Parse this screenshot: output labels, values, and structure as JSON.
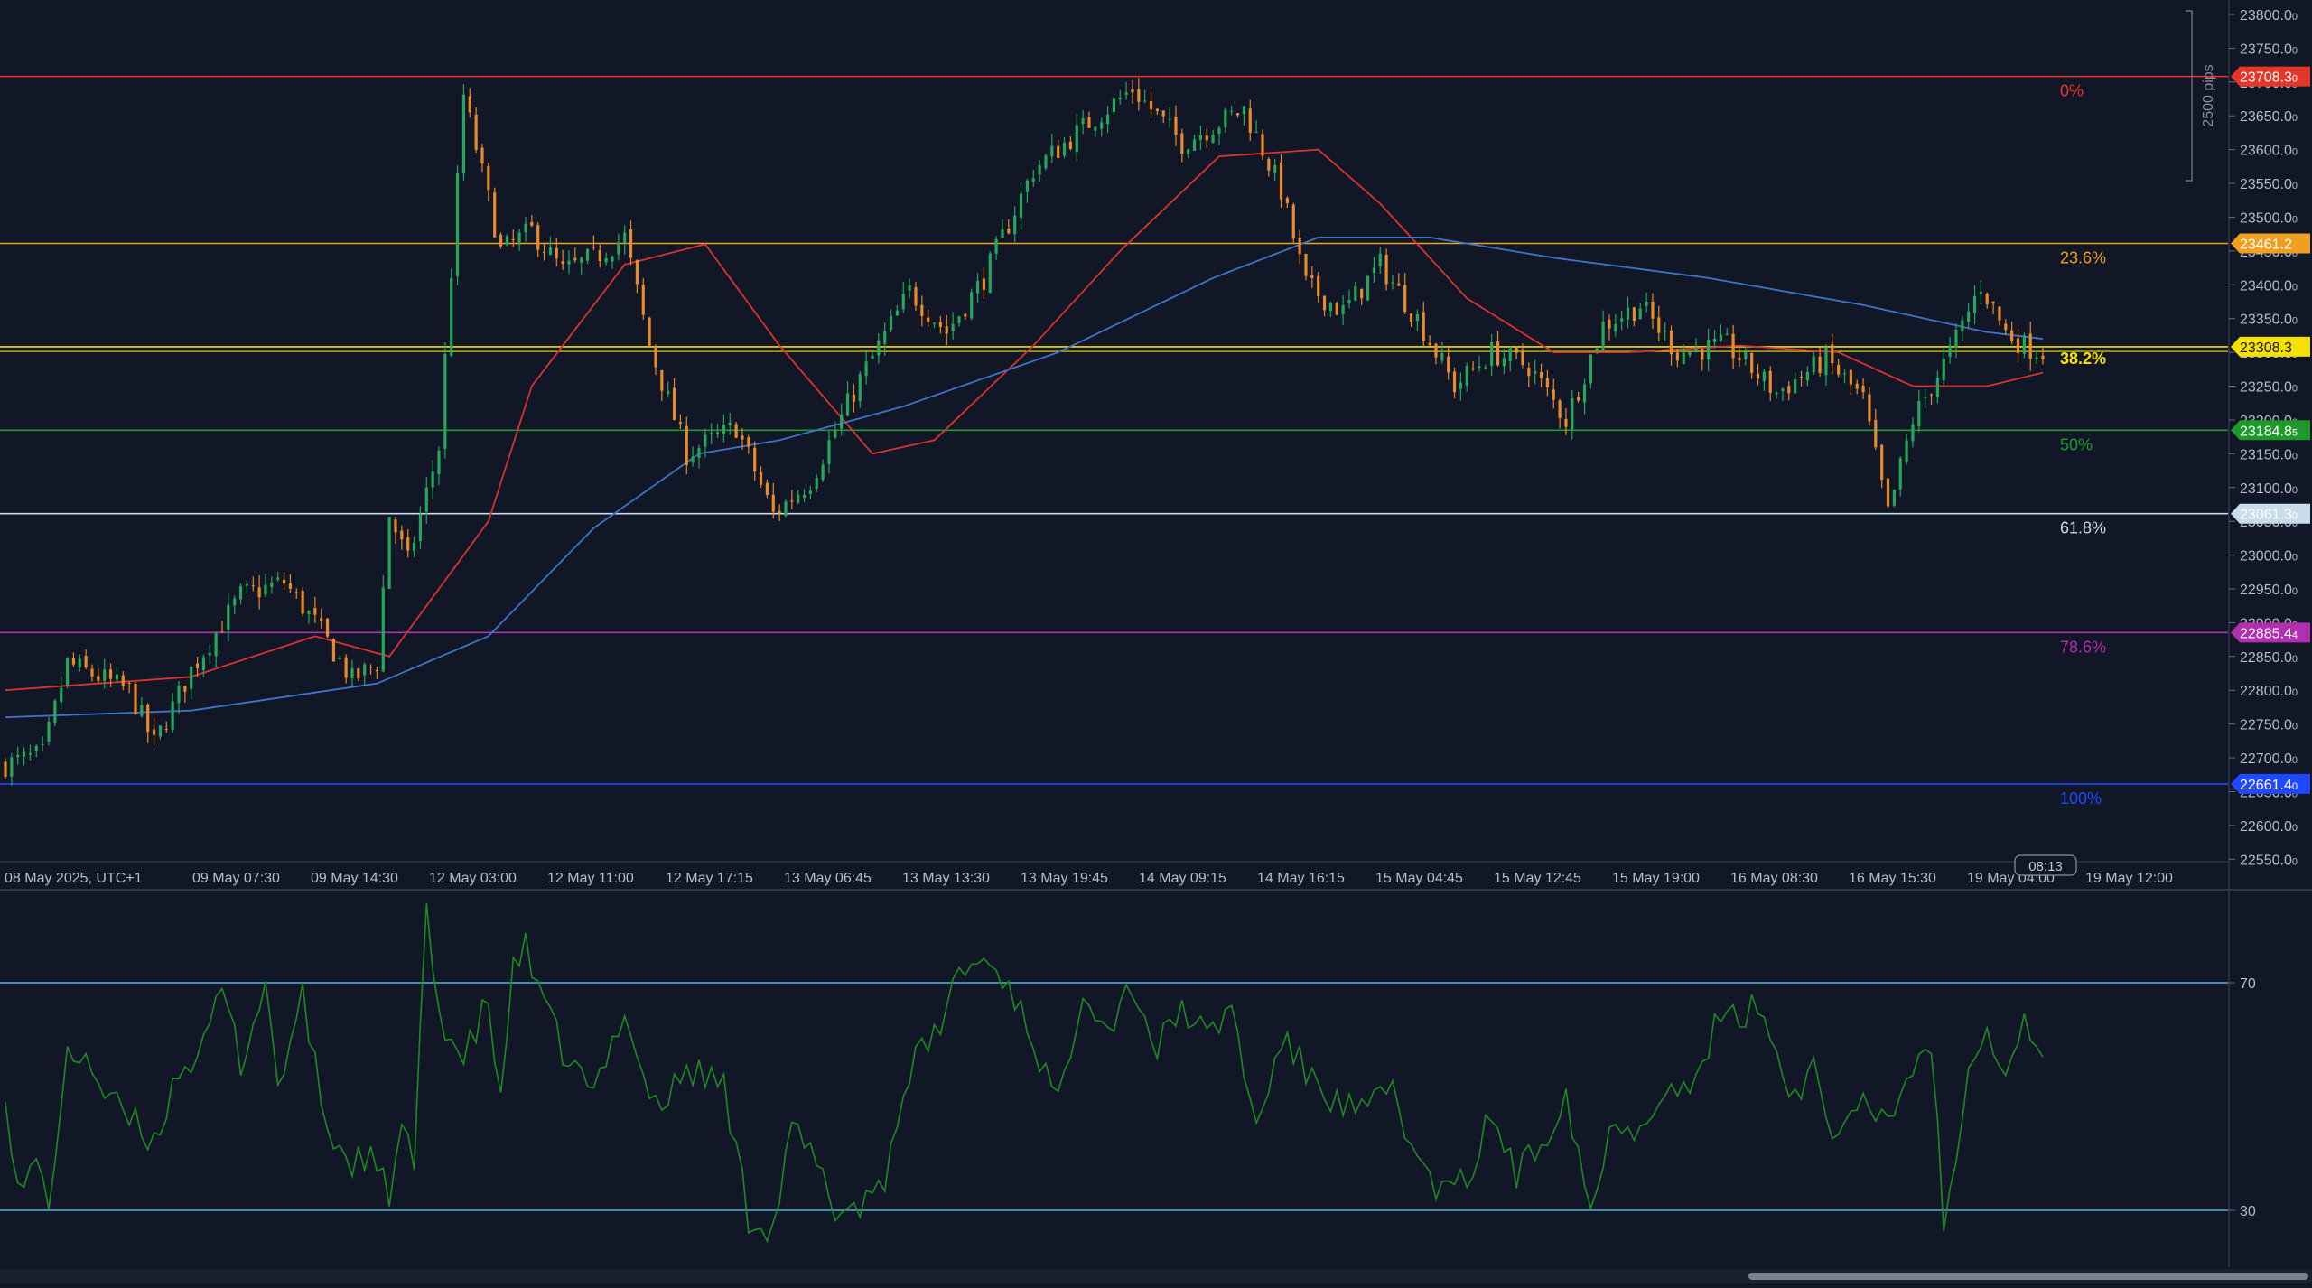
{
  "chart_data": [
    {
      "type": "candlestick",
      "title": "",
      "timezone_label": "08 May 2025, UTC+1",
      "x_tick_labels": [
        "08 May 2025, UTC+1",
        "09 May 07:30",
        "09 May 14:30",
        "12 May 03:00",
        "12 May 11:00",
        "12 May 17:15",
        "13 May 06:45",
        "13 May 13:30",
        "13 May 19:45",
        "14 May 09:15",
        "14 May 16:15",
        "15 May 04:45",
        "15 May 12:45",
        "15 May 19:00",
        "16 May 08:30",
        "16 May 15:30",
        "19 May 04:00",
        "19 May 12:00"
      ],
      "y_tick_labels": [
        "23800.0",
        "23750.0",
        "23700.0",
        "23650.0",
        "23600.0",
        "23550.0",
        "23500.0",
        "23450.0",
        "23400.0",
        "23350.0",
        "23300.0",
        "23250.0",
        "23200.0",
        "23150.0",
        "23100.0",
        "23050.0",
        "23000.0",
        "22950.0",
        "22900.0",
        "22850.0",
        "22800.0",
        "22750.0",
        "22700.0",
        "22650.0",
        "22600.0",
        "22550.0"
      ],
      "ylim": [
        22540,
        23815
      ],
      "bar_count": 330,
      "candle_colors": {
        "up": "#26a65b",
        "down": "#e8892b"
      },
      "close_path": [
        {
          "bar": 0,
          "price": 22690
        },
        {
          "bar": 6,
          "price": 22705
        },
        {
          "bar": 10,
          "price": 22840
        },
        {
          "bar": 20,
          "price": 22800
        },
        {
          "bar": 24,
          "price": 22720
        },
        {
          "bar": 30,
          "price": 22830
        },
        {
          "bar": 38,
          "price": 22940
        },
        {
          "bar": 45,
          "price": 22960
        },
        {
          "bar": 50,
          "price": 22900
        },
        {
          "bar": 56,
          "price": 22815
        },
        {
          "bar": 60,
          "price": 22840
        },
        {
          "bar": 62,
          "price": 23060
        },
        {
          "bar": 65,
          "price": 22990
        },
        {
          "bar": 70,
          "price": 23160
        },
        {
          "bar": 74,
          "price": 23680
        },
        {
          "bar": 80,
          "price": 23450
        },
        {
          "bar": 85,
          "price": 23480
        },
        {
          "bar": 90,
          "price": 23420
        },
        {
          "bar": 95,
          "price": 23440
        },
        {
          "bar": 100,
          "price": 23470
        },
        {
          "bar": 104,
          "price": 23310
        },
        {
          "bar": 110,
          "price": 23150
        },
        {
          "bar": 118,
          "price": 23190
        },
        {
          "bar": 124,
          "price": 23060
        },
        {
          "bar": 130,
          "price": 23110
        },
        {
          "bar": 138,
          "price": 23260
        },
        {
          "bar": 146,
          "price": 23390
        },
        {
          "bar": 152,
          "price": 23330
        },
        {
          "bar": 158,
          "price": 23410
        },
        {
          "bar": 166,
          "price": 23570
        },
        {
          "bar": 175,
          "price": 23640
        },
        {
          "bar": 182,
          "price": 23690
        },
        {
          "bar": 190,
          "price": 23610
        },
        {
          "bar": 196,
          "price": 23640
        },
        {
          "bar": 200,
          "price": 23660
        },
        {
          "bar": 206,
          "price": 23540
        },
        {
          "bar": 210,
          "price": 23400
        },
        {
          "bar": 216,
          "price": 23360
        },
        {
          "bar": 222,
          "price": 23430
        },
        {
          "bar": 228,
          "price": 23350
        },
        {
          "bar": 234,
          "price": 23250
        },
        {
          "bar": 240,
          "price": 23300
        },
        {
          "bar": 246,
          "price": 23280
        },
        {
          "bar": 252,
          "price": 23200
        },
        {
          "bar": 258,
          "price": 23340
        },
        {
          "bar": 264,
          "price": 23370
        },
        {
          "bar": 270,
          "price": 23300
        },
        {
          "bar": 278,
          "price": 23310
        },
        {
          "bar": 286,
          "price": 23240
        },
        {
          "bar": 294,
          "price": 23290
        },
        {
          "bar": 300,
          "price": 23230
        },
        {
          "bar": 304,
          "price": 23060
        },
        {
          "bar": 308,
          "price": 23200
        },
        {
          "bar": 314,
          "price": 23300
        },
        {
          "bar": 319,
          "price": 23400
        },
        {
          "bar": 323,
          "price": 23330
        },
        {
          "bar": 326,
          "price": 23310
        },
        {
          "bar": 329,
          "price": 23300
        }
      ],
      "moving_averages": [
        {
          "color": "#d9332f",
          "points": [
            {
              "bar": 0,
              "price": 22800
            },
            {
              "bar": 30,
              "price": 22820
            },
            {
              "bar": 50,
              "price": 22880
            },
            {
              "bar": 62,
              "price": 22850
            },
            {
              "bar": 70,
              "price": 22950
            },
            {
              "bar": 78,
              "price": 23050
            },
            {
              "bar": 85,
              "price": 23250
            },
            {
              "bar": 100,
              "price": 23430
            },
            {
              "bar": 113,
              "price": 23460
            },
            {
              "bar": 125,
              "price": 23310
            },
            {
              "bar": 140,
              "price": 23150
            },
            {
              "bar": 150,
              "price": 23170
            },
            {
              "bar": 166,
              "price": 23310
            },
            {
              "bar": 180,
              "price": 23450
            },
            {
              "bar": 196,
              "price": 23590
            },
            {
              "bar": 212,
              "price": 23600
            },
            {
              "bar": 222,
              "price": 23520
            },
            {
              "bar": 236,
              "price": 23380
            },
            {
              "bar": 250,
              "price": 23300
            },
            {
              "bar": 262,
              "price": 23300
            },
            {
              "bar": 280,
              "price": 23310
            },
            {
              "bar": 296,
              "price": 23300
            },
            {
              "bar": 308,
              "price": 23250
            },
            {
              "bar": 320,
              "price": 23250
            },
            {
              "bar": 329,
              "price": 23270
            }
          ]
        },
        {
          "color": "#3f73c7",
          "points": [
            {
              "bar": 0,
              "price": 22760
            },
            {
              "bar": 30,
              "price": 22770
            },
            {
              "bar": 60,
              "price": 22810
            },
            {
              "bar": 78,
              "price": 22880
            },
            {
              "bar": 95,
              "price": 23040
            },
            {
              "bar": 112,
              "price": 23150
            },
            {
              "bar": 125,
              "price": 23170
            },
            {
              "bar": 145,
              "price": 23220
            },
            {
              "bar": 170,
              "price": 23300
            },
            {
              "bar": 195,
              "price": 23410
            },
            {
              "bar": 212,
              "price": 23470
            },
            {
              "bar": 230,
              "price": 23470
            },
            {
              "bar": 250,
              "price": 23440
            },
            {
              "bar": 275,
              "price": 23410
            },
            {
              "bar": 300,
              "price": 23370
            },
            {
              "bar": 320,
              "price": 23330
            },
            {
              "bar": 329,
              "price": 23320
            }
          ]
        }
      ],
      "fib_levels": [
        {
          "label": "0%",
          "price": 23708.3,
          "color": "#e5362a",
          "tag": "23708.3",
          "tag_suffix": "0",
          "tag_text_color": "#ffffff"
        },
        {
          "label": "23.6%",
          "price": 23461.2,
          "color": "#f0a020",
          "tag": "23461.2",
          "tag_suffix": "",
          "tag_text_color": "#ffffff"
        },
        {
          "label": "38.2%",
          "price": 23308.3,
          "color": "#f5e000",
          "tag": "23308.3",
          "tag_suffix": "",
          "tag_text_color": "#111726"
        },
        {
          "label": "50%",
          "price": 23184.8,
          "color": "#1d9a2a",
          "tag": "23184.8",
          "tag_suffix": "5",
          "tag_text_color": "#ffffff"
        },
        {
          "label": "61.8%",
          "price": 23061.3,
          "color": "#c8dcea",
          "tag": "23061.3",
          "tag_suffix": "0",
          "tag_text_color": "#ffffff"
        },
        {
          "label": "78.6%",
          "price": 22885.4,
          "color": "#b22fb0",
          "tag": "22885.4",
          "tag_suffix": "4",
          "tag_text_color": "#ffffff"
        },
        {
          "label": "100%",
          "price": 22661.4,
          "color": "#1f49ff",
          "tag": "22661.4",
          "tag_suffix": "0",
          "tag_text_color": "#ffffff"
        }
      ],
      "current_price_line": {
        "price": 23301.4,
        "color": "#f5e000"
      },
      "range_annotation": "2500 pips",
      "current_time_label": "08:13"
    },
    {
      "type": "line",
      "title": "",
      "levels": [
        70,
        30
      ],
      "level_labels": [
        "70",
        "30"
      ],
      "ylim": [
        20,
        82
      ],
      "line_color": "#1e8a22",
      "path": [
        {
          "bar": 0,
          "v": 52
        },
        {
          "bar": 2,
          "v": 33
        },
        {
          "bar": 5,
          "v": 38
        },
        {
          "bar": 7,
          "v": 32
        },
        {
          "bar": 10,
          "v": 56
        },
        {
          "bar": 13,
          "v": 58
        },
        {
          "bar": 16,
          "v": 50
        },
        {
          "bar": 20,
          "v": 46
        },
        {
          "bar": 24,
          "v": 42
        },
        {
          "bar": 28,
          "v": 55
        },
        {
          "bar": 32,
          "v": 58
        },
        {
          "bar": 35,
          "v": 69
        },
        {
          "bar": 38,
          "v": 56
        },
        {
          "bar": 42,
          "v": 70
        },
        {
          "bar": 44,
          "v": 52
        },
        {
          "bar": 48,
          "v": 67
        },
        {
          "bar": 52,
          "v": 44
        },
        {
          "bar": 56,
          "v": 38
        },
        {
          "bar": 58,
          "v": 40
        },
        {
          "bar": 62,
          "v": 33
        },
        {
          "bar": 64,
          "v": 44
        },
        {
          "bar": 66,
          "v": 38
        },
        {
          "bar": 68,
          "v": 82
        },
        {
          "bar": 70,
          "v": 65
        },
        {
          "bar": 74,
          "v": 56
        },
        {
          "bar": 78,
          "v": 67
        },
        {
          "bar": 80,
          "v": 48
        },
        {
          "bar": 82,
          "v": 74
        },
        {
          "bar": 84,
          "v": 76
        },
        {
          "bar": 86,
          "v": 68
        },
        {
          "bar": 90,
          "v": 58
        },
        {
          "bar": 95,
          "v": 50
        },
        {
          "bar": 100,
          "v": 66
        },
        {
          "bar": 103,
          "v": 53
        },
        {
          "bar": 106,
          "v": 48
        },
        {
          "bar": 110,
          "v": 55
        },
        {
          "bar": 116,
          "v": 52
        },
        {
          "bar": 120,
          "v": 29
        },
        {
          "bar": 124,
          "v": 27
        },
        {
          "bar": 127,
          "v": 44
        },
        {
          "bar": 130,
          "v": 40
        },
        {
          "bar": 134,
          "v": 30
        },
        {
          "bar": 138,
          "v": 31
        },
        {
          "bar": 142,
          "v": 36
        },
        {
          "bar": 146,
          "v": 55
        },
        {
          "bar": 150,
          "v": 60
        },
        {
          "bar": 154,
          "v": 72
        },
        {
          "bar": 158,
          "v": 74
        },
        {
          "bar": 162,
          "v": 70
        },
        {
          "bar": 166,
          "v": 60
        },
        {
          "bar": 170,
          "v": 48
        },
        {
          "bar": 174,
          "v": 70
        },
        {
          "bar": 178,
          "v": 62
        },
        {
          "bar": 182,
          "v": 70
        },
        {
          "bar": 186,
          "v": 58
        },
        {
          "bar": 190,
          "v": 66
        },
        {
          "bar": 194,
          "v": 60
        },
        {
          "bar": 198,
          "v": 66
        },
        {
          "bar": 202,
          "v": 44
        },
        {
          "bar": 206,
          "v": 60
        },
        {
          "bar": 212,
          "v": 52
        },
        {
          "bar": 216,
          "v": 48
        },
        {
          "bar": 220,
          "v": 47
        },
        {
          "bar": 224,
          "v": 52
        },
        {
          "bar": 228,
          "v": 38
        },
        {
          "bar": 232,
          "v": 33
        },
        {
          "bar": 236,
          "v": 35
        },
        {
          "bar": 240,
          "v": 47
        },
        {
          "bar": 244,
          "v": 36
        },
        {
          "bar": 248,
          "v": 42
        },
        {
          "bar": 252,
          "v": 51
        },
        {
          "bar": 256,
          "v": 30
        },
        {
          "bar": 260,
          "v": 47
        },
        {
          "bar": 264,
          "v": 44
        },
        {
          "bar": 268,
          "v": 53
        },
        {
          "bar": 272,
          "v": 50
        },
        {
          "bar": 276,
          "v": 62
        },
        {
          "bar": 280,
          "v": 64
        },
        {
          "bar": 284,
          "v": 66
        },
        {
          "bar": 288,
          "v": 50
        },
        {
          "bar": 292,
          "v": 55
        },
        {
          "bar": 296,
          "v": 42
        },
        {
          "bar": 300,
          "v": 48
        },
        {
          "bar": 304,
          "v": 46
        },
        {
          "bar": 308,
          "v": 55
        },
        {
          "bar": 311,
          "v": 60
        },
        {
          "bar": 313,
          "v": 28
        },
        {
          "bar": 315,
          "v": 38
        },
        {
          "bar": 317,
          "v": 58
        },
        {
          "bar": 320,
          "v": 62
        },
        {
          "bar": 323,
          "v": 55
        },
        {
          "bar": 326,
          "v": 63
        },
        {
          "bar": 328,
          "v": 60
        },
        {
          "bar": 329,
          "v": 56
        }
      ]
    }
  ]
}
